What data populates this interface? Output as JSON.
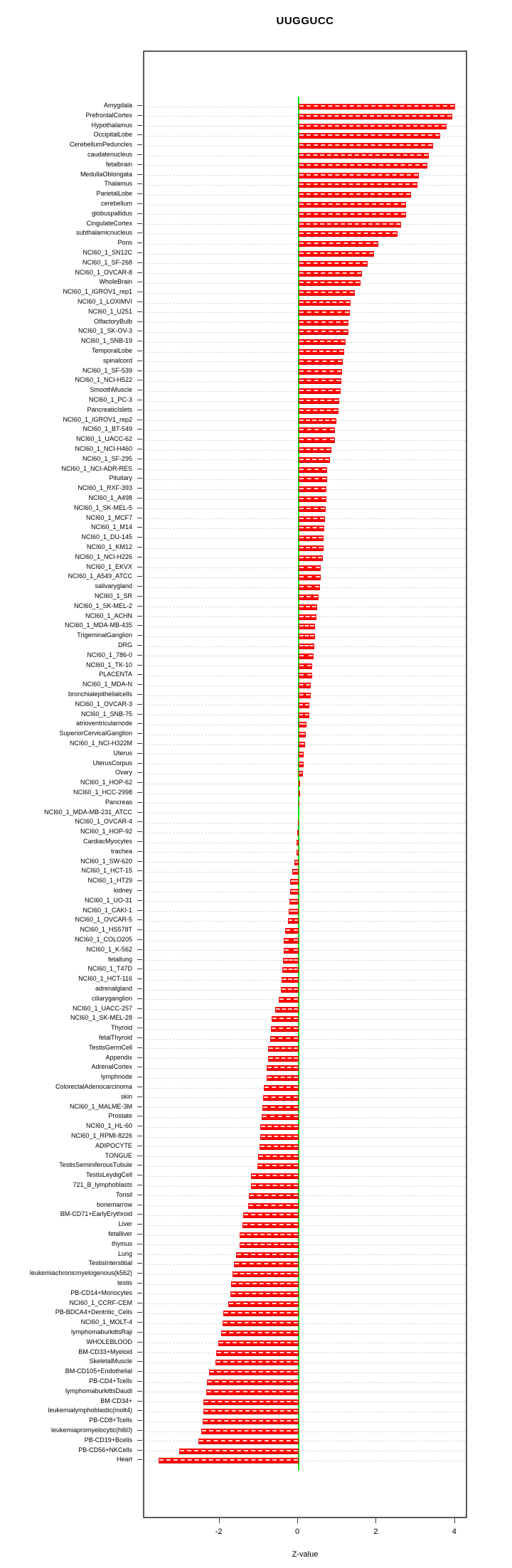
{
  "chart_data": {
    "type": "bar",
    "orientation": "horizontal",
    "title": "UUGGUCC",
    "xlabel": "Z-value",
    "ylabel": "",
    "xlim": [
      -3.93,
      4.33
    ],
    "x_ticks": [
      -2,
      0,
      2,
      4
    ],
    "grid": true,
    "zero_line": true,
    "colors": {
      "bar": "#ff0000",
      "zero_line": "#00e600",
      "grid": "#d9d9d9",
      "box_border": "#595959",
      "text": "#000000"
    },
    "categories": [
      "Amygdala",
      "PrefrontalCortex",
      "Hypothalamus",
      "OccipitalLobe",
      "CerebellumPeduncles",
      "caudatenucleus",
      "fetalbrain",
      "MedullaOblongata",
      "Thalamus",
      "ParietalLobe",
      "cerebellum",
      "globuspallidus",
      "CingulateCortex",
      "subthalamicnucleus",
      "Pons",
      "NCI60_1_SN12C",
      "NCI60_1_SF-268",
      "NCI60_1_OVCAR-8",
      "WholeBrain",
      "NCI60_1_IGROV1_rep1",
      "NCI60_1_LOXIMVI",
      "NCI60_1_U251",
      "OlfactoryBulb",
      "NCI60_1_SK-OV-3",
      "NCI60_1_SNB-19",
      "TemporalLobe",
      "spinalcord",
      "NCI60_1_SF-539",
      "NCI60_1_NCI-H522",
      "SmoothMuscle",
      "NCI60_1_PC-3",
      "PancreaticIslets",
      "NCI60_1_IGROV1_rep2",
      "NCI60_1_BT-549",
      "NCI60_1_UACC-62",
      "NCI60_1_NCI-H460",
      "NCI60_1_SF-295",
      "NCI60_1_NCI-ADR-RES",
      "Pituitary",
      "NCI60_1_RXF-393",
      "NCI60_1_A498",
      "NCI60_1_SK-MEL-5",
      "NCI60_1_MCF7",
      "NCI60_1_M14",
      "NCI60_1_DU-145",
      "NCI60_1_KM12",
      "NCI60_1_NCI-H226",
      "NCI60_1_EKVX",
      "NCI60_1_A549_ATCC",
      "salivarygland",
      "NCI60_1_SR",
      "NCI60_1_SK-MEL-2",
      "NCI60_1_ACHN",
      "NCI60_1_MDA-MB-435",
      "TrigeminalGanglion",
      "DRG",
      "NCI60_1_786-0",
      "NCI60_1_TK-10",
      "PLACENTA",
      "NCI60_1_MDA-N",
      "bronchialepithelialcells",
      "NCI60_1_OVCAR-3",
      "NCI60_1_SNB-75",
      "atrioventricularnode",
      "SuperiorCervicalGanglion",
      "NCI60_1_NCI-H322M",
      "Uterus",
      "UterusCorpus",
      "Ovary",
      "NCI60_1_HOP-62",
      "NCI60_1_HCC-2998",
      "Pancreas",
      "NCI60_1_MDA-MB-231_ATCC",
      "NCI60_1_OVCAR-4",
      "NCI60_1_HOP-92",
      "CardiacMyocytes",
      "trachea",
      "NCI60_1_SW-620",
      "NCI60_1_HCT-15",
      "NCI60_1_HT29",
      "kidney",
      "NCI60_1_UO-31",
      "NCI60_1_CAKI-1",
      "NCI60_1_OVCAR-5",
      "NCI60_1_HS578T",
      "NCI60_1_COLO205",
      "NCI60_1_K-562",
      "fetallung",
      "NCI60_1_T47D",
      "NCI60_1_HCT-116",
      "adrenalgland",
      "ciliaryganglion",
      "NCI60_1_UACC-257",
      "NCI60_1_SK-MEL-28",
      "Thyroid",
      "fetalThyroid",
      "TestisGermCell",
      "Appendix",
      "AdrenalCortex",
      "lymphnode",
      "ColorectalAdenocarcinoma",
      "skin",
      "NCI60_1_MALME-3M",
      "Prostate",
      "NCI60_1_HL-60",
      "NCI60_1_RPMI-8226",
      "ADIPOCYTE",
      "TONGUE",
      "TestisSeminiferousTubule",
      "TestisLeydigCell",
      "721_B_lymphoblasts",
      "Tonsil",
      "bonemarrow",
      "BM-CD71+EarlyErythroid",
      "Liver",
      "fetalliver",
      "thymus",
      "Lung",
      "TestisInterstitial",
      "leukemiachronicmyelogenous(k562)",
      "testis",
      "PB-CD14+Monocytes",
      "NCI60_1_CCRF-CEM",
      "PB-BDCA4+Dentritic_Cells",
      "NCI60_1_MOLT-4",
      "lymphomaburkittsRaji",
      "WHOLEBLOOD",
      "BM-CD33+Myeloid",
      "SkeletalMuscle",
      "BM-CD105+Endothelial",
      "PB-CD4+Tcells",
      "lymphomaburkittsDaudi",
      "BM-CD34+",
      "leukemialymphoblastic(molt4)",
      "PB-CD8+Tcells",
      "leukemiapromyelocytic(hl60)",
      "PB-CD19+Bcells",
      "PB-CD56+NKCells",
      "Heart"
    ],
    "values": [
      3.98,
      3.92,
      3.77,
      3.6,
      3.43,
      3.32,
      3.27,
      3.06,
      3.03,
      2.87,
      2.74,
      2.73,
      2.61,
      2.51,
      2.02,
      1.92,
      1.76,
      1.62,
      1.58,
      1.44,
      1.33,
      1.31,
      1.27,
      1.26,
      1.2,
      1.16,
      1.13,
      1.1,
      1.08,
      1.07,
      1.03,
      1.02,
      0.96,
      0.93,
      0.92,
      0.84,
      0.8,
      0.73,
      0.72,
      0.71,
      0.71,
      0.68,
      0.67,
      0.65,
      0.63,
      0.63,
      0.61,
      0.57,
      0.56,
      0.54,
      0.5,
      0.48,
      0.46,
      0.42,
      0.41,
      0.4,
      0.38,
      0.35,
      0.34,
      0.3,
      0.3,
      0.28,
      0.27,
      0.2,
      0.19,
      0.16,
      0.13,
      0.12,
      0.1,
      0.03,
      0.03,
      0.01,
      0.0,
      -0.02,
      -0.03,
      -0.05,
      -0.06,
      -0.1,
      -0.17,
      -0.21,
      -0.22,
      -0.24,
      -0.25,
      -0.28,
      -0.35,
      -0.38,
      -0.38,
      -0.39,
      -0.41,
      -0.43,
      -0.46,
      -0.51,
      -0.59,
      -0.68,
      -0.7,
      -0.72,
      -0.77,
      -0.78,
      -0.82,
      -0.82,
      -0.88,
      -0.9,
      -0.92,
      -0.95,
      -0.97,
      -0.98,
      -1.0,
      -1.03,
      -1.05,
      -1.21,
      -1.22,
      -1.27,
      -1.29,
      -1.42,
      -1.43,
      -1.5,
      -1.51,
      -1.6,
      -1.65,
      -1.69,
      -1.72,
      -1.74,
      -1.8,
      -1.92,
      -1.93,
      -1.97,
      -2.05,
      -2.11,
      -2.12,
      -2.28,
      -2.33,
      -2.36,
      -2.42,
      -2.43,
      -2.45,
      -2.49,
      -2.56,
      -3.04,
      -3.57
    ]
  }
}
